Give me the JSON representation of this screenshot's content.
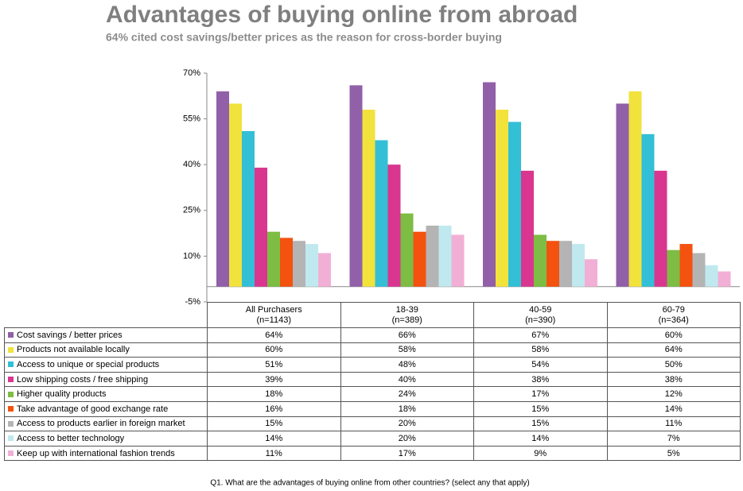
{
  "chart_data": {
    "type": "bar",
    "title": "Advantages of buying online from abroad",
    "subtitle": "64% cited cost savings/better prices as the reason for cross-border buying",
    "footnote": "Q1. What are the advantages of buying online from other countries?  (select any that apply)",
    "categories": [
      "All Purchasers\n(n=1143)",
      "18-39\n(n=389)",
      "40-59\n(n=390)",
      "60-79\n(n=364)"
    ],
    "ylim": [
      -5,
      70
    ],
    "yticks": [
      {
        "value": -5,
        "label": "-5%"
      },
      {
        "value": 10,
        "label": "10%"
      },
      {
        "value": 25,
        "label": "25%"
      },
      {
        "value": 40,
        "label": "40%"
      },
      {
        "value": 55,
        "label": "55%"
      },
      {
        "value": 70,
        "label": "70%"
      }
    ],
    "grid": false,
    "series": [
      {
        "name": "Cost savings / better prices",
        "color": "#9160a8",
        "values": [
          64,
          66,
          67,
          60
        ],
        "value_labels": [
          "64%",
          "66%",
          "67%",
          "60%"
        ]
      },
      {
        "name": "Products not available locally",
        "color": "#f2e23c",
        "values": [
          60,
          58,
          58,
          64
        ],
        "value_labels": [
          "60%",
          "58%",
          "58%",
          "64%"
        ]
      },
      {
        "name": "Access to unique or special products",
        "color": "#33bfd6",
        "values": [
          51,
          48,
          54,
          50
        ],
        "value_labels": [
          "51%",
          "48%",
          "54%",
          "50%"
        ]
      },
      {
        "name": "Low shipping costs / free shipping",
        "color": "#d9368f",
        "values": [
          39,
          40,
          38,
          38
        ],
        "value_labels": [
          "39%",
          "40%",
          "38%",
          "38%"
        ]
      },
      {
        "name": "Higher quality products",
        "color": "#7dbd43",
        "values": [
          18,
          24,
          17,
          12
        ],
        "value_labels": [
          "18%",
          "24%",
          "17%",
          "12%"
        ]
      },
      {
        "name": "Take advantage of good exchange rate",
        "color": "#f4520f",
        "values": [
          16,
          18,
          15,
          14
        ],
        "value_labels": [
          "16%",
          "18%",
          "15%",
          "14%"
        ]
      },
      {
        "name": "Access to products earlier in foreign market",
        "color": "#b4b4b4",
        "values": [
          15,
          20,
          15,
          11
        ],
        "value_labels": [
          "15%",
          "20%",
          "15%",
          "11%"
        ]
      },
      {
        "name": "Access to better technology",
        "color": "#bfe9ef",
        "values": [
          14,
          20,
          14,
          7
        ],
        "value_labels": [
          "14%",
          "20%",
          "14%",
          "7%"
        ]
      },
      {
        "name": "Keep up with international fashion trends",
        "color": "#f2afd5",
        "values": [
          11,
          17,
          9,
          5
        ],
        "value_labels": [
          "11%",
          "17%",
          "9%",
          "5%"
        ]
      }
    ]
  }
}
